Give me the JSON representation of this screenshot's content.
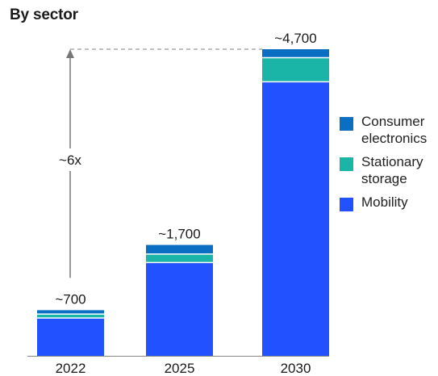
{
  "title": "By sector",
  "colors": {
    "consumer_electronics": "#0a6fc2",
    "stationary_storage": "#1bb5a7",
    "mobility": "#2251ff",
    "axis": "#888888",
    "annotation": "#777777"
  },
  "legend": [
    {
      "label": "Consumer electronics",
      "color_key": "consumer_electronics"
    },
    {
      "label": "Stationary storage",
      "color_key": "stationary_storage"
    },
    {
      "label": "Mobility",
      "color_key": "mobility"
    }
  ],
  "annotation": {
    "multiplier_label": "~6x"
  },
  "chart_data": {
    "type": "bar",
    "stacked": true,
    "title": "By sector",
    "categories": [
      "2022",
      "2025",
      "2030"
    ],
    "total_labels": [
      "~700",
      "~1,700",
      "~4,700"
    ],
    "series": [
      {
        "name": "Mobility",
        "values": [
          580,
          1430,
          4200
        ]
      },
      {
        "name": "Stationary storage",
        "values": [
          60,
          130,
          370
        ]
      },
      {
        "name": "Consumer electronics",
        "values": [
          60,
          140,
          130
        ]
      }
    ],
    "ylim": [
      0,
      4700
    ],
    "legend_position": "right",
    "grid": false
  }
}
